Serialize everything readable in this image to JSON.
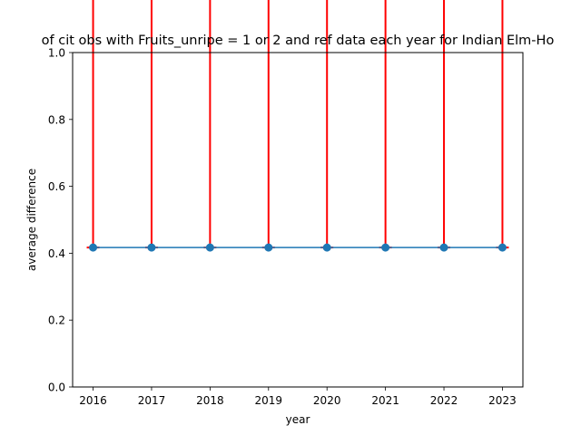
{
  "chart_data": {
    "type": "line",
    "title": "of cit obs with Fruits_unripe = 1 or 2 and ref data each year for Indian Elm-Ho",
    "xlabel": "year",
    "ylabel": "average difference",
    "x": [
      2016,
      2017,
      2018,
      2019,
      2020,
      2021,
      2022,
      2023
    ],
    "x_tick_labels": [
      "2016",
      "2017",
      "2018",
      "2019",
      "2020",
      "2021",
      "2022",
      "2023"
    ],
    "y_tick_labels": [
      "0.0",
      "0.2",
      "0.4",
      "0.6",
      "0.8",
      "1.0"
    ],
    "y_ticks": [
      0.0,
      0.2,
      0.4,
      0.6,
      0.8,
      1.0
    ],
    "xlim": [
      2015.65,
      2023.35
    ],
    "ylim": [
      0,
      1
    ],
    "series": [
      {
        "values": [
          0.417,
          0.417,
          0.417,
          0.417,
          0.417,
          0.417,
          0.417,
          0.417
        ],
        "error_lower": [
          0,
          0,
          0,
          0,
          0,
          0,
          0,
          0
        ],
        "error_upper": [
          0.91,
          0.91,
          0.91,
          0.91,
          0.91,
          0.91,
          0.91,
          0.91
        ]
      }
    ],
    "grid": false,
    "colors": {
      "line": "#1f77b4",
      "errorbar": "#ff0000"
    }
  }
}
